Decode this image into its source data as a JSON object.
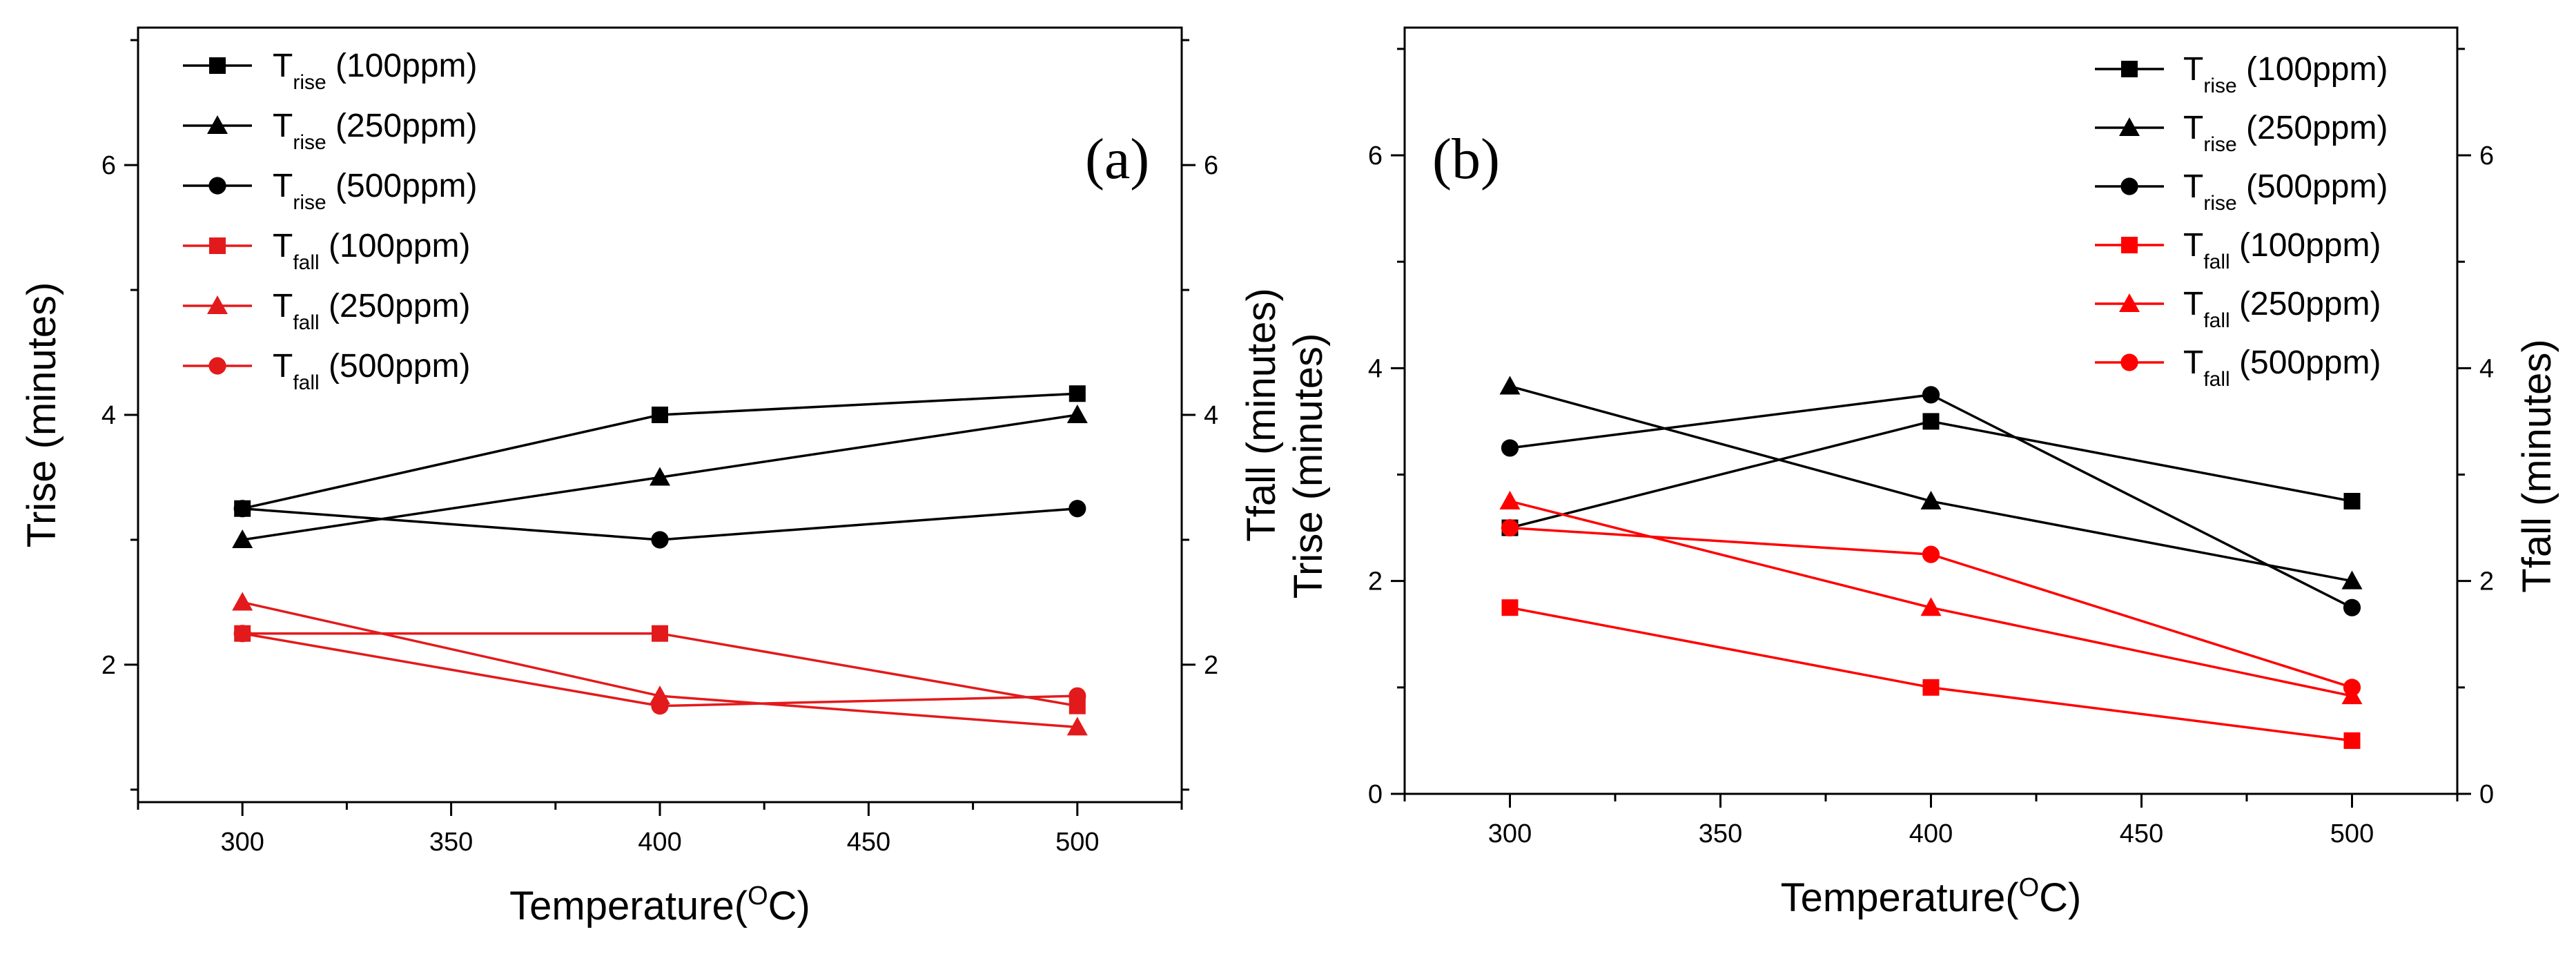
{
  "chart_data": [
    {
      "panel": "(a)",
      "type": "line",
      "xlabel": "Temperature(",
      "xlabel_sup": "O",
      "xlabel_suffix": "C)",
      "ylabel_left": "Trise (minutes)",
      "ylabel_right": "Tfall (minutes)",
      "xlim": [
        275,
        525
      ],
      "ylim": [
        0.9,
        7.1
      ],
      "xticks": [
        300,
        350,
        400,
        450,
        500
      ],
      "yticks": [
        2,
        4,
        6
      ],
      "x": [
        300,
        400,
        500
      ],
      "series": [
        {
          "name": "T",
          "sub": "rise",
          "label": "(100ppm)",
          "color": "#000000",
          "marker": "square",
          "values": [
            3.25,
            4.0,
            4.17
          ]
        },
        {
          "name": "T",
          "sub": "rise",
          "label": "(250ppm)",
          "color": "#000000",
          "marker": "triangle",
          "values": [
            3.0,
            3.5,
            4.0
          ]
        },
        {
          "name": "T",
          "sub": "rise",
          "label": "(500ppm)",
          "color": "#000000",
          "marker": "circle",
          "values": [
            3.25,
            3.0,
            3.25
          ]
        },
        {
          "name": "T",
          "sub": "fall",
          "label": "(100ppm)",
          "color": "#e31a1c",
          "marker": "square",
          "values": [
            2.25,
            2.25,
            1.67
          ]
        },
        {
          "name": "T",
          "sub": "fall",
          "label": "(250ppm)",
          "color": "#e31a1c",
          "marker": "triangle",
          "values": [
            2.5,
            1.75,
            1.5
          ]
        },
        {
          "name": "T",
          "sub": "fall",
          "label": "(500ppm)",
          "color": "#e31a1c",
          "marker": "circle",
          "values": [
            2.25,
            1.67,
            1.75
          ]
        }
      ]
    },
    {
      "panel": "(b)",
      "type": "line",
      "xlabel": "Temperature(",
      "xlabel_sup": "O",
      "xlabel_suffix": "C)",
      "ylabel_left": "Trise (minutes)",
      "ylabel_right": "Tfall (minutes)",
      "xlim": [
        275,
        525
      ],
      "ylim": [
        0,
        7.2
      ],
      "xticks": [
        300,
        350,
        400,
        450,
        500
      ],
      "yticks": [
        0,
        2,
        4,
        6
      ],
      "x": [
        300,
        400,
        500
      ],
      "series": [
        {
          "name": "T",
          "sub": "rise",
          "label": "(100ppm)",
          "color": "#000000",
          "marker": "square",
          "values": [
            2.5,
            3.5,
            2.75
          ]
        },
        {
          "name": "T",
          "sub": "rise",
          "label": "(250ppm)",
          "color": "#000000",
          "marker": "triangle",
          "values": [
            3.83,
            2.75,
            2.0
          ]
        },
        {
          "name": "T",
          "sub": "rise",
          "label": "(500ppm)",
          "color": "#000000",
          "marker": "circle",
          "values": [
            3.25,
            3.75,
            1.75
          ]
        },
        {
          "name": "T",
          "sub": "fall",
          "label": "(100ppm)",
          "color": "#ff0000",
          "marker": "square",
          "values": [
            1.75,
            1.0,
            0.5
          ]
        },
        {
          "name": "T",
          "sub": "fall",
          "label": "(250ppm)",
          "color": "#ff0000",
          "marker": "triangle",
          "values": [
            2.75,
            1.75,
            0.92
          ]
        },
        {
          "name": "T",
          "sub": "fall",
          "label": "(500ppm)",
          "color": "#ff0000",
          "marker": "circle",
          "values": [
            2.5,
            2.25,
            1.0
          ]
        }
      ]
    }
  ]
}
